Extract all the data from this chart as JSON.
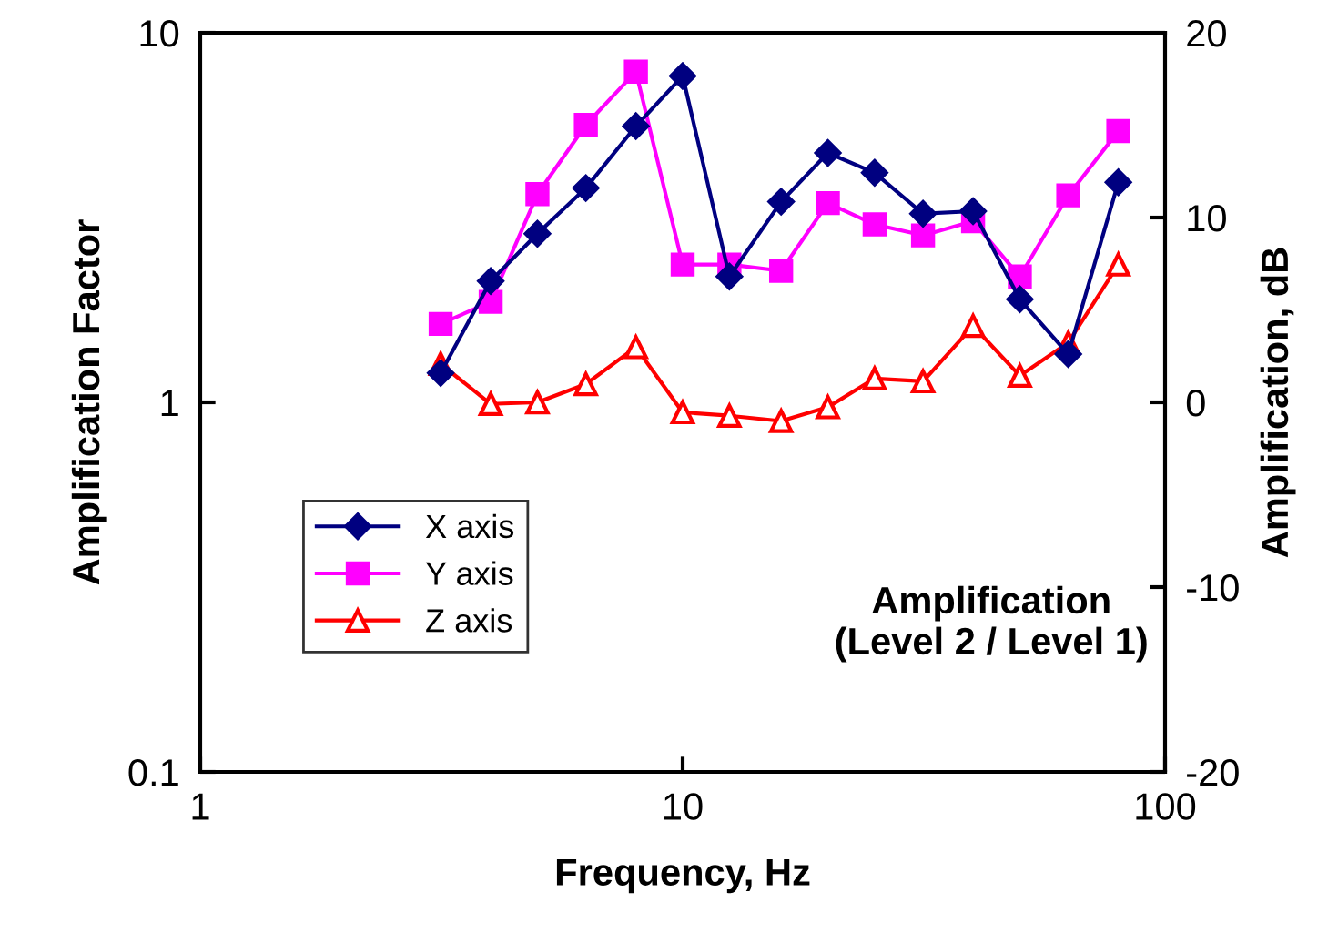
{
  "chart_data": {
    "type": "line",
    "xlabel": "Frequency, Hz",
    "ylabel": "Amplification Factor",
    "y2label": "Amplification, dB",
    "log": "xy",
    "xlim": [
      1,
      100
    ],
    "xticks": [
      1,
      10,
      100
    ],
    "ylim": [
      0.1,
      10
    ],
    "yticks": [
      0.1,
      1,
      10
    ],
    "y2lim": [
      -20,
      20
    ],
    "y2ticks": [
      -20,
      -10,
      0,
      10,
      20
    ],
    "x": [
      3.15,
      4,
      5,
      6.3,
      8,
      10,
      12.5,
      16,
      20,
      25,
      31.5,
      40,
      50,
      63,
      80
    ],
    "grid": false,
    "legend": "bottom left",
    "line_style": "solid",
    "annotations": [
      "Amplification\n(Level 2 / Level 1)"
    ],
    "series": [
      {
        "name": "X axis",
        "color": "#000080",
        "marker": "diamond",
        "values": [
          1.2,
          2.13,
          2.86,
          3.8,
          5.59,
          7.64,
          2.19,
          3.49,
          4.73,
          4.18,
          3.24,
          3.29,
          1.9,
          1.35,
          3.94
        ]
      },
      {
        "name": "Y axis",
        "color": "#ff00ff",
        "marker": "square",
        "values": [
          1.63,
          1.87,
          3.66,
          5.63,
          7.85,
          2.36,
          2.36,
          2.27,
          3.46,
          3.03,
          2.83,
          3.09,
          2.19,
          3.63,
          5.42
        ]
      },
      {
        "name": "Z axis",
        "color": "#ff0000",
        "marker": "triangle",
        "values": [
          1.27,
          0.99,
          1.0,
          1.12,
          1.41,
          0.94,
          0.92,
          0.89,
          0.97,
          1.16,
          1.14,
          1.61,
          1.18,
          1.45,
          2.36
        ]
      }
    ]
  }
}
